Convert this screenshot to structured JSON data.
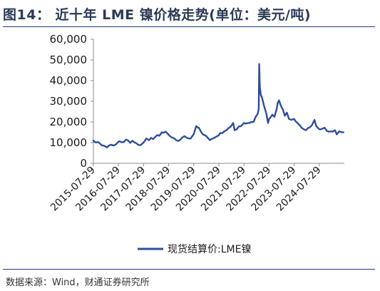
{
  "header": {
    "title": "图14：  近十年 LME 镍价格走势(单位：美元/吨)"
  },
  "footer": {
    "source": "数据来源：Wind，财通证券研究所"
  },
  "colors": {
    "series": "#2e4d9a",
    "accent_rule": "#1f3a8a"
  },
  "chart_data": {
    "type": "line",
    "title": "近十年 LME 镍价格走势",
    "xlabel": "",
    "ylabel": "",
    "unit": "美元/吨",
    "ylim": [
      0,
      60000
    ],
    "yticks": [
      0,
      10000,
      20000,
      30000,
      40000,
      50000,
      60000
    ],
    "ytick_labels": [
      "0",
      "10,000",
      "20,000",
      "30,000",
      "40,000",
      "50,000",
      "60,000"
    ],
    "xticks": [
      "2015-07-29",
      "2016-07-29",
      "2017-07-29",
      "2018-07-29",
      "2019-07-29",
      "2020-07-29",
      "2021-07-29",
      "2022-07-29",
      "2023-07-29",
      "2024-07-29"
    ],
    "xlim": [
      "2015-07-29",
      "2025-07-29"
    ],
    "legend": "bottom-center",
    "grid": false,
    "series": [
      {
        "name": "现货结算价:LME镍",
        "points": [
          [
            "2015-07-29",
            11000
          ],
          [
            "2015-08-15",
            10300
          ],
          [
            "2015-09-10",
            10100
          ],
          [
            "2015-10-05",
            10300
          ],
          [
            "2015-11-01",
            9500
          ],
          [
            "2015-12-01",
            8700
          ],
          [
            "2016-01-01",
            8500
          ],
          [
            "2016-02-11",
            7700
          ],
          [
            "2016-03-15",
            8700
          ],
          [
            "2016-04-15",
            9000
          ],
          [
            "2016-05-15",
            8600
          ],
          [
            "2016-06-15",
            9000
          ],
          [
            "2016-07-29",
            10500
          ],
          [
            "2016-08-15",
            10700
          ],
          [
            "2016-09-10",
            10200
          ],
          [
            "2016-10-15",
            10300
          ],
          [
            "2016-11-15",
            11500
          ],
          [
            "2016-12-15",
            11000
          ],
          [
            "2017-01-15",
            9900
          ],
          [
            "2017-02-15",
            10900
          ],
          [
            "2017-03-15",
            10200
          ],
          [
            "2017-04-15",
            9700
          ],
          [
            "2017-05-15",
            8900
          ],
          [
            "2017-06-15",
            8800
          ],
          [
            "2017-07-29",
            10100
          ],
          [
            "2017-08-15",
            10800
          ],
          [
            "2017-09-05",
            12000
          ],
          [
            "2017-10-15",
            11200
          ],
          [
            "2017-11-15",
            12300
          ],
          [
            "2017-12-15",
            11700
          ],
          [
            "2018-01-15",
            12800
          ],
          [
            "2018-02-15",
            13700
          ],
          [
            "2018-03-15",
            13300
          ],
          [
            "2018-04-20",
            15000
          ],
          [
            "2018-05-15",
            14800
          ],
          [
            "2018-06-15",
            15300
          ],
          [
            "2018-07-29",
            13800
          ],
          [
            "2018-08-15",
            13200
          ],
          [
            "2018-09-15",
            12500
          ],
          [
            "2018-10-15",
            12100
          ],
          [
            "2018-11-15",
            11200
          ],
          [
            "2018-12-15",
            10800
          ],
          [
            "2019-01-15",
            11500
          ],
          [
            "2019-02-15",
            12600
          ],
          [
            "2019-03-15",
            13100
          ],
          [
            "2019-04-15",
            12400
          ],
          [
            "2019-05-15",
            12000
          ],
          [
            "2019-06-15",
            12000
          ],
          [
            "2019-07-29",
            14200
          ],
          [
            "2019-08-15",
            16000
          ],
          [
            "2019-09-02",
            18000
          ],
          [
            "2019-09-20",
            17500
          ],
          [
            "2019-10-15",
            17000
          ],
          [
            "2019-11-15",
            15000
          ],
          [
            "2019-12-15",
            13800
          ],
          [
            "2020-01-15",
            13500
          ],
          [
            "2020-02-15",
            12500
          ],
          [
            "2020-03-20",
            11200
          ],
          [
            "2020-04-15",
            11800
          ],
          [
            "2020-05-15",
            12200
          ],
          [
            "2020-06-15",
            12800
          ],
          [
            "2020-07-29",
            13600
          ],
          [
            "2020-08-15",
            14600
          ],
          [
            "2020-09-15",
            14600
          ],
          [
            "2020-10-15",
            15500
          ],
          [
            "2020-11-15",
            16000
          ],
          [
            "2020-12-15",
            17000
          ],
          [
            "2021-01-15",
            17700
          ],
          [
            "2021-02-22",
            19500
          ],
          [
            "2021-03-15",
            16000
          ],
          [
            "2021-04-15",
            16500
          ],
          [
            "2021-05-15",
            17800
          ],
          [
            "2021-06-15",
            18000
          ],
          [
            "2021-07-29",
            19500
          ],
          [
            "2021-08-15",
            19200
          ],
          [
            "2021-09-15",
            19400
          ],
          [
            "2021-10-15",
            19500
          ],
          [
            "2021-11-15",
            20000
          ],
          [
            "2021-12-15",
            20000
          ],
          [
            "2022-01-15",
            22500
          ],
          [
            "2022-02-15",
            24000
          ],
          [
            "2022-03-01",
            26500
          ],
          [
            "2022-03-08",
            48000
          ],
          [
            "2022-03-16",
            37000
          ],
          [
            "2022-04-01",
            33000
          ],
          [
            "2022-04-15",
            32000
          ],
          [
            "2022-05-15",
            28000
          ],
          [
            "2022-06-15",
            24500
          ],
          [
            "2022-07-15",
            19500
          ],
          [
            "2022-07-29",
            21500
          ],
          [
            "2022-08-15",
            22000
          ],
          [
            "2022-09-15",
            23500
          ],
          [
            "2022-10-15",
            22500
          ],
          [
            "2022-11-15",
            26000
          ],
          [
            "2022-12-01",
            29000
          ],
          [
            "2022-12-20",
            30500
          ],
          [
            "2023-01-15",
            28000
          ],
          [
            "2023-02-15",
            26000
          ],
          [
            "2023-03-15",
            23000
          ],
          [
            "2023-04-15",
            24500
          ],
          [
            "2023-05-15",
            21500
          ],
          [
            "2023-06-15",
            21000
          ],
          [
            "2023-07-29",
            21500
          ],
          [
            "2023-08-15",
            20500
          ],
          [
            "2023-09-15",
            19500
          ],
          [
            "2023-10-15",
            18500
          ],
          [
            "2023-11-15",
            17200
          ],
          [
            "2023-12-15",
            16500
          ],
          [
            "2024-01-15",
            16000
          ],
          [
            "2024-02-15",
            17000
          ],
          [
            "2024-03-15",
            17500
          ],
          [
            "2024-04-15",
            18500
          ],
          [
            "2024-05-20",
            21000
          ],
          [
            "2024-06-15",
            18000
          ],
          [
            "2024-07-29",
            16500
          ],
          [
            "2024-08-15",
            16400
          ],
          [
            "2024-09-15",
            16800
          ],
          [
            "2024-10-15",
            17200
          ],
          [
            "2024-11-15",
            15700
          ],
          [
            "2024-12-15",
            15300
          ],
          [
            "2025-01-15",
            15400
          ],
          [
            "2025-02-15",
            15400
          ],
          [
            "2025-03-15",
            16000
          ],
          [
            "2025-04-10",
            14000
          ],
          [
            "2025-05-15",
            15500
          ],
          [
            "2025-06-15",
            15100
          ],
          [
            "2025-07-15",
            15000
          ]
        ]
      }
    ]
  }
}
